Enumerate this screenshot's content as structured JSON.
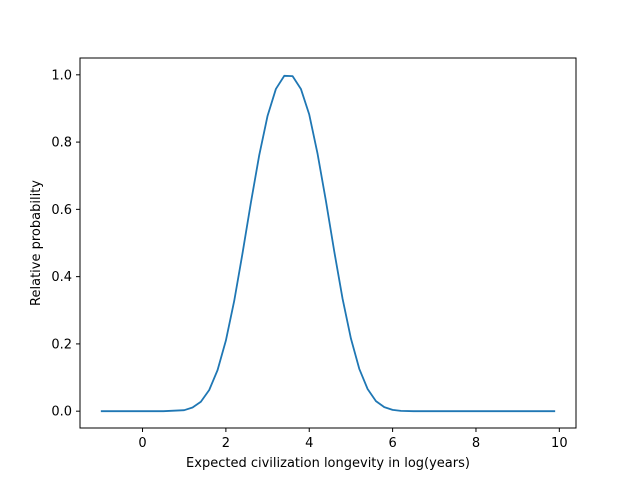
{
  "chart_data": {
    "type": "line",
    "title": "",
    "xlabel": "Expected civilization longevity in log(years)",
    "ylabel": "Relative probability",
    "xlim": [
      -1.5,
      10.4
    ],
    "ylim": [
      -0.05,
      1.05
    ],
    "xticks": [
      0,
      2,
      4,
      6,
      8,
      10
    ],
    "xtick_labels": [
      "0",
      "2",
      "4",
      "6",
      "8",
      "10"
    ],
    "yticks": [
      0.0,
      0.2,
      0.4,
      0.6,
      0.8,
      1.0
    ],
    "ytick_labels": [
      "0.0",
      "0.2",
      "0.4",
      "0.6",
      "0.8",
      "1.0"
    ],
    "grid": false,
    "legend": "none",
    "line_color": "#1f77b4",
    "series": [
      {
        "x": [
          -1.0,
          0.0,
          0.5,
          1.0,
          1.2,
          1.4,
          1.6,
          1.8,
          2.0,
          2.2,
          2.4,
          2.6,
          2.8,
          3.0,
          3.2,
          3.4,
          3.6,
          3.8,
          4.0,
          4.2,
          4.4,
          4.6,
          4.8,
          5.0,
          5.2,
          5.4,
          5.6,
          5.8,
          6.0,
          6.2,
          6.5,
          7.0,
          8.0,
          9.0,
          9.9
        ],
        "y": [
          0.0,
          0.0,
          0.0,
          0.003,
          0.011,
          0.028,
          0.063,
          0.122,
          0.21,
          0.328,
          0.47,
          0.62,
          0.761,
          0.878,
          0.958,
          0.997,
          0.996,
          0.958,
          0.882,
          0.765,
          0.625,
          0.475,
          0.334,
          0.216,
          0.126,
          0.066,
          0.03,
          0.012,
          0.004,
          0.001,
          0.0,
          0.0,
          0.0,
          0.0,
          0.0
        ]
      }
    ]
  }
}
